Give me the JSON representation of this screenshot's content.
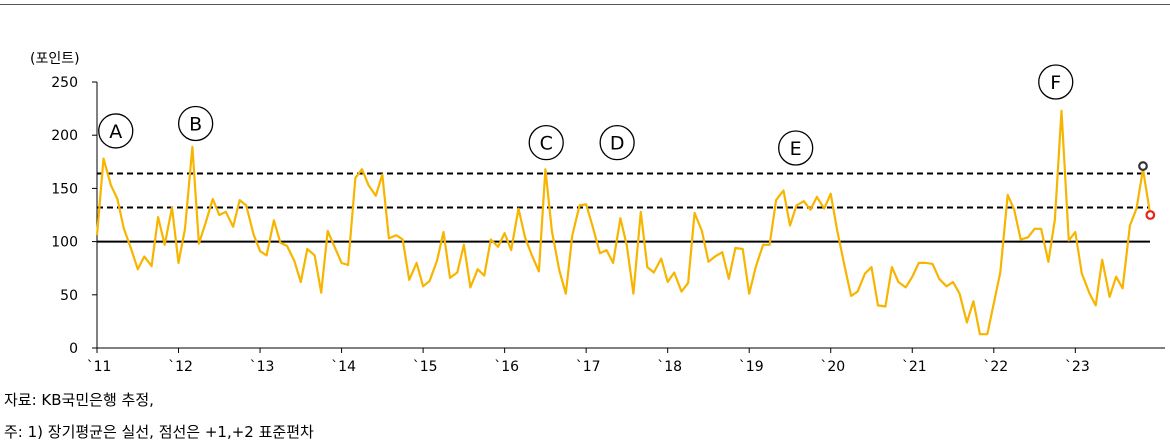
{
  "chart_data": {
    "type": "line",
    "title": "",
    "ylabel": "(포인트)",
    "xlabel": "",
    "ylim": [
      0,
      250
    ],
    "yticks": [
      0,
      50,
      100,
      150,
      200,
      250
    ],
    "xlim": [
      2011.0,
      2024.1
    ],
    "xticks": [
      {
        "x": 2011,
        "label": "`11"
      },
      {
        "x": 2012,
        "label": "`12"
      },
      {
        "x": 2013,
        "label": "`13"
      },
      {
        "x": 2014,
        "label": "`14"
      },
      {
        "x": 2015,
        "label": "`15"
      },
      {
        "x": 2016,
        "label": "`16"
      },
      {
        "x": 2017,
        "label": "`17"
      },
      {
        "x": 2018,
        "label": "`18"
      },
      {
        "x": 2019,
        "label": "`19"
      },
      {
        "x": 2020,
        "label": "`20"
      },
      {
        "x": 2021,
        "label": "`21"
      },
      {
        "x": 2022,
        "label": "`22"
      },
      {
        "x": 2023,
        "label": "`23"
      }
    ],
    "colors": {
      "series": "#F7B500",
      "ref_solid": "#000000",
      "ref_dashed": "#000000",
      "marker_black": "#333333",
      "marker_red": "#E8221B"
    },
    "reference_lines": [
      {
        "value": 100,
        "style": "solid"
      },
      {
        "value": 132,
        "style": "dashed"
      },
      {
        "value": 164,
        "style": "dashed"
      }
    ],
    "series": [
      {
        "x": [
          2011.0,
          2011.08,
          2011.17,
          2011.25,
          2011.33,
          2011.42,
          2011.5,
          2011.58,
          2011.67,
          2011.75,
          2011.83,
          2011.92,
          2012.0,
          2012.08,
          2012.17,
          2012.25,
          2012.33,
          2012.42,
          2012.5,
          2012.58,
          2012.67,
          2012.75,
          2012.83,
          2012.92,
          2013.0,
          2013.08,
          2013.17,
          2013.25,
          2013.33,
          2013.42,
          2013.5,
          2013.58,
          2013.67,
          2013.75,
          2013.83,
          2013.92,
          2014.0,
          2014.08,
          2014.17,
          2014.25,
          2014.33,
          2014.42,
          2014.5,
          2014.58,
          2014.67,
          2014.75,
          2014.83,
          2014.92,
          2015.0,
          2015.08,
          2015.17,
          2015.25,
          2015.33,
          2015.42,
          2015.5,
          2015.58,
          2015.67,
          2015.75,
          2015.83,
          2015.92,
          2016.0,
          2016.08,
          2016.17,
          2016.25,
          2016.33,
          2016.42,
          2016.5,
          2016.58,
          2016.67,
          2016.75,
          2016.83,
          2016.92,
          2017.0,
          2017.08,
          2017.17,
          2017.25,
          2017.33,
          2017.42,
          2017.5,
          2017.58,
          2017.67,
          2017.75,
          2017.83,
          2017.92,
          2018.0,
          2018.08,
          2018.17,
          2018.25,
          2018.33,
          2018.42,
          2018.5,
          2018.58,
          2018.67,
          2018.75,
          2018.83,
          2018.92,
          2019.0,
          2019.08,
          2019.17,
          2019.25,
          2019.33,
          2019.42,
          2019.5,
          2019.58,
          2019.67,
          2019.75,
          2019.83,
          2019.92,
          2020.0,
          2020.08,
          2020.17,
          2020.25,
          2020.33,
          2020.42,
          2020.5,
          2020.58,
          2020.67,
          2020.75,
          2020.83,
          2020.92,
          2021.0,
          2021.08,
          2021.17,
          2021.25,
          2021.33,
          2021.42,
          2021.5,
          2021.58,
          2021.67,
          2021.75,
          2021.83,
          2021.92,
          2022.0,
          2022.08,
          2022.17,
          2022.25,
          2022.33,
          2022.42,
          2022.5,
          2022.58,
          2022.67,
          2022.75,
          2022.83,
          2022.92,
          2023.0,
          2023.08,
          2023.17,
          2023.25,
          2023.33,
          2023.42,
          2023.5,
          2023.58,
          2023.67,
          2023.75,
          2023.83,
          2023.92
        ],
        "values": [
          106,
          178,
          153,
          140,
          112,
          93,
          74,
          86,
          77,
          123,
          97,
          132,
          80,
          112,
          189,
          98,
          117,
          140,
          125,
          128,
          114,
          139,
          134,
          107,
          91,
          87,
          120,
          99,
          96,
          82,
          62,
          93,
          87,
          52,
          110,
          94,
          80,
          78,
          160,
          168,
          153,
          143,
          163,
          103,
          106,
          102,
          64,
          80,
          58,
          63,
          82,
          109,
          66,
          71,
          97,
          57,
          74,
          68,
          102,
          95,
          108,
          92,
          131,
          104,
          88,
          72,
          168,
          110,
          73,
          51,
          106,
          134,
          135,
          114,
          89,
          92,
          80,
          122,
          96,
          51,
          128,
          76,
          71,
          84,
          62,
          71,
          53,
          61,
          127,
          110,
          81,
          86,
          90,
          65,
          94,
          93,
          51,
          76,
          97,
          97,
          139,
          148,
          115,
          134,
          138,
          130,
          142,
          131,
          145,
          110,
          77,
          49,
          53,
          70,
          76,
          40,
          39,
          76,
          62,
          57,
          67,
          80,
          80,
          79,
          65,
          58,
          62,
          51,
          24,
          44,
          13,
          13,
          42,
          71,
          144,
          130,
          102,
          104,
          112,
          112,
          81,
          121,
          223,
          101,
          109,
          70,
          52,
          40,
          83,
          48,
          67,
          56,
          115,
          131,
          168,
          125
        ]
      }
    ],
    "annotations": [
      {
        "label": "A",
        "x": 2011.23,
        "y": 204
      },
      {
        "label": "B",
        "x": 2012.21,
        "y": 211
      },
      {
        "label": "C",
        "x": 2016.51,
        "y": 193
      },
      {
        "label": "D",
        "x": 2017.38,
        "y": 193
      },
      {
        "label": "E",
        "x": 2019.57,
        "y": 188
      },
      {
        "label": "F",
        "x": 2022.76,
        "y": 250
      }
    ],
    "markers": [
      {
        "x": 2023.83,
        "y": 171,
        "color": "#333333"
      },
      {
        "x": 2023.92,
        "y": 125,
        "color": "#E8221B"
      }
    ]
  },
  "footer": {
    "source": "자료: KB국민은행 추정,",
    "note": "주: 1) 장기평균은 실선, 점선은 +1,+2 표준편차"
  }
}
